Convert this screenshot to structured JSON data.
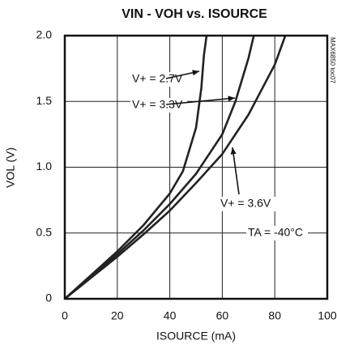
{
  "chart_data": {
    "type": "line",
    "title": "VIN - VOH vs. ISOURCE",
    "x_label": "ISOURCE (mA)",
    "y_label": "VOL (V)",
    "side_note": "MAX6850 toc07",
    "xlim": [
      0,
      100
    ],
    "ylim": [
      0,
      2.0
    ],
    "xticks": [
      0,
      20,
      40,
      60,
      80,
      100
    ],
    "yticks": [
      0,
      0.5,
      {
        "value": 1.0,
        "label": "1.0"
      },
      1.5,
      {
        "value": 2.0,
        "label": "2.0"
      }
    ],
    "grid": true,
    "series": [
      {
        "name": "V+ = 2.7V",
        "color": "#222222",
        "x": [
          0,
          10,
          20,
          30,
          40,
          45,
          50,
          52,
          53,
          54
        ],
        "values": [
          0,
          0.18,
          0.36,
          0.56,
          0.8,
          0.97,
          1.3,
          1.6,
          1.85,
          2.0
        ]
      },
      {
        "name": "V+ = 3.3V",
        "color": "#222222",
        "x": [
          0,
          10,
          20,
          30,
          40,
          50,
          60,
          65,
          70,
          72
        ],
        "values": [
          0,
          0.17,
          0.34,
          0.52,
          0.72,
          0.95,
          1.25,
          1.5,
          1.83,
          2.0
        ]
      },
      {
        "name": "V+ = 3.6V",
        "color": "#222222",
        "x": [
          0,
          10,
          20,
          30,
          40,
          50,
          60,
          70,
          80,
          84
        ],
        "values": [
          0,
          0.16,
          0.32,
          0.49,
          0.67,
          0.88,
          1.1,
          1.4,
          1.78,
          2.0
        ]
      }
    ],
    "annotations": [
      "TA = -40°C"
    ]
  }
}
